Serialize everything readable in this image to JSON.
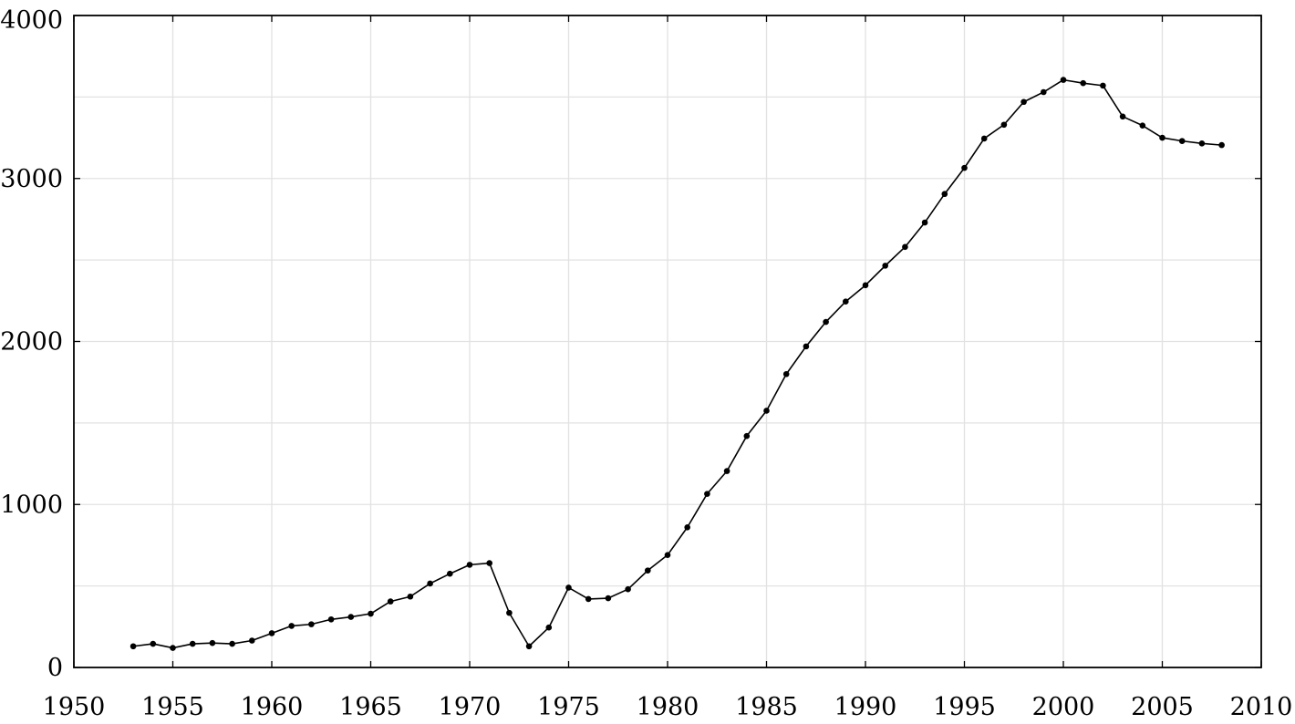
{
  "chart_data": {
    "type": "line",
    "title": "",
    "xlabel": "",
    "ylabel": "",
    "xlim": [
      1950,
      2010
    ],
    "ylim": [
      0,
      4000
    ],
    "x_ticks": [
      1950,
      1955,
      1960,
      1965,
      1970,
      1975,
      1980,
      1985,
      1990,
      1995,
      2000,
      2005,
      2010
    ],
    "y_ticks": [
      0,
      1000,
      2000,
      3000,
      4000
    ],
    "x_tick_labels": [
      "1950",
      "1955",
      "1960",
      "1965",
      "1970",
      "1975",
      "1980",
      "1985",
      "1990",
      "1995",
      "2000",
      "2005",
      "2010"
    ],
    "y_tick_labels": [
      "0",
      "1000",
      "2000",
      "3000",
      "4000"
    ],
    "grid": true,
    "series": [
      {
        "line_color": "#000000",
        "marker": "dot",
        "x": [
          1953,
          1954,
          1955,
          1956,
          1957,
          1958,
          1959,
          1960,
          1961,
          1962,
          1963,
          1964,
          1965,
          1966,
          1967,
          1968,
          1969,
          1970,
          1971,
          1972,
          1973,
          1974,
          1975,
          1976,
          1977,
          1978,
          1979,
          1980,
          1981,
          1982,
          1983,
          1984,
          1985,
          1986,
          1987,
          1988,
          1989,
          1990,
          1991,
          1992,
          1993,
          1994,
          1995,
          1996,
          1997,
          1998,
          1999,
          2000,
          2001,
          2002,
          2003,
          2004,
          2005,
          2006,
          2007,
          2008
        ],
        "y": [
          130,
          145,
          120,
          145,
          150,
          145,
          165,
          210,
          255,
          265,
          295,
          310,
          330,
          405,
          435,
          515,
          575,
          630,
          640,
          335,
          130,
          245,
          490,
          420,
          425,
          480,
          595,
          690,
          860,
          1065,
          1205,
          1420,
          1575,
          1800,
          1970,
          2120,
          2245,
          2345,
          2465,
          2580,
          2730,
          2905,
          3065,
          3245,
          3330,
          3470,
          3530,
          3605,
          3585,
          3570,
          3380,
          3325,
          3250,
          3230,
          3215,
          3205
        ]
      }
    ]
  },
  "colors": {
    "grid": "#e2e2e2",
    "axis": "#000000",
    "line": "#000000"
  }
}
